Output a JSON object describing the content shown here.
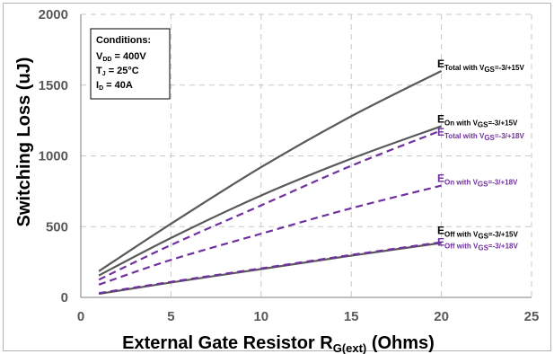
{
  "chart_data": {
    "type": "line",
    "title": "",
    "xlabel": {
      "main": "External Gate Resistor R",
      "sub": "G(ext)",
      "tail": " (Ohms)"
    },
    "ylabel": "Switching Loss (uJ)",
    "xlim": [
      0,
      25
    ],
    "ylim": [
      0,
      2000
    ],
    "xticks": [
      "0",
      "5",
      "10",
      "15",
      "20",
      "25"
    ],
    "yticks": [
      "0",
      "500",
      "1000",
      "1500",
      "2000"
    ],
    "grid": true,
    "conditions": {
      "title": "Conditions:",
      "lines": [
        {
          "main": "V",
          "sub": "DD",
          "tail": " = 400V"
        },
        {
          "main": "T",
          "sub": "J",
          "tail": " = 25°C"
        },
        {
          "main": "I",
          "sub": "D",
          "tail": " = 40A"
        }
      ]
    },
    "series": [
      {
        "label_main": "E",
        "label_sub": "Total with V",
        "label_sub2": "GS",
        "label_tail": "=-3/+15V",
        "color": "#595959",
        "dash": false,
        "x": [
          1,
          5,
          10,
          15,
          20
        ],
        "y": [
          185,
          520,
          920,
          1280,
          1600
        ]
      },
      {
        "label_main": "E",
        "label_sub": "On with V",
        "label_sub2": "GS",
        "label_tail": "=-3/+15V",
        "color": "#595959",
        "dash": false,
        "x": [
          1,
          5,
          10,
          15,
          20
        ],
        "y": [
          155,
          420,
          720,
          980,
          1210
        ]
      },
      {
        "label_main": "E",
        "label_sub": "Total with V",
        "label_sub2": "GS",
        "label_tail": "=-3/+18V",
        "color": "#7030a0",
        "dash": true,
        "x": [
          1,
          5,
          10,
          15,
          20
        ],
        "y": [
          125,
          370,
          650,
          930,
          1180
        ]
      },
      {
        "label_main": "E",
        "label_sub": "On with V",
        "label_sub2": "GS",
        "label_tail": "=-3/+18V",
        "color": "#7030a0",
        "dash": true,
        "x": [
          1,
          5,
          10,
          15,
          20
        ],
        "y": [
          90,
          265,
          450,
          630,
          790
        ]
      },
      {
        "label_main": "E",
        "label_sub": "Off with V",
        "label_sub2": "GS",
        "label_tail": "=-3/+15V",
        "color": "#595959",
        "dash": false,
        "x": [
          1,
          5,
          10,
          15,
          20
        ],
        "y": [
          25,
          105,
          200,
          295,
          385
        ]
      },
      {
        "label_main": "E",
        "label_sub": "Off with V",
        "label_sub2": "GS",
        "label_tail": "=-3/+18V",
        "color": "#7030a0",
        "dash": true,
        "x": [
          1,
          5,
          10,
          15,
          20
        ],
        "y": [
          30,
          110,
          205,
          300,
          390
        ]
      }
    ]
  }
}
